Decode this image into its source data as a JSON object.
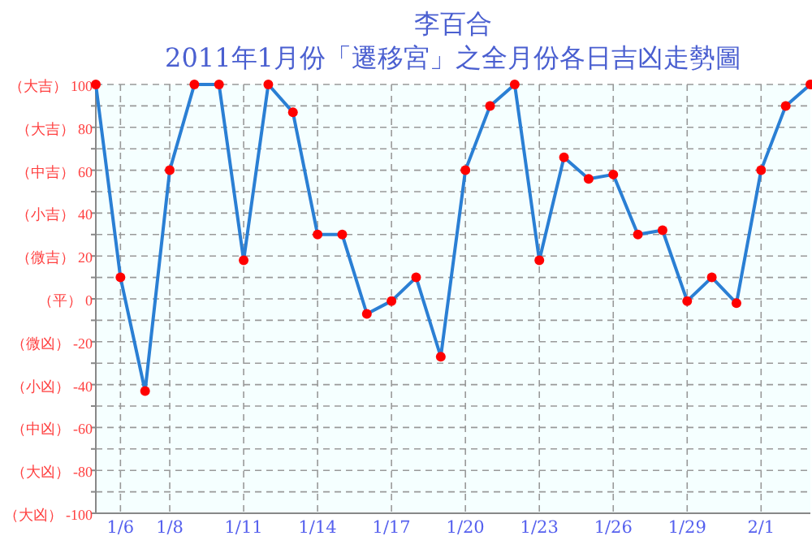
{
  "chart_data": {
    "type": "line",
    "title": "李百合",
    "subtitle": "2011年1月份「遷移宮」之全月份各日吉凶走勢圖",
    "categories": [
      null,
      "1/6",
      null,
      "1/8",
      null,
      null,
      "1/11",
      null,
      null,
      "1/14",
      null,
      null,
      "1/17",
      null,
      null,
      "1/20",
      null,
      null,
      "1/23",
      null,
      null,
      "1/26",
      null,
      null,
      "1/29",
      null,
      null,
      "2/1",
      null,
      null
    ],
    "series": [
      {
        "color": "#2a7fd4",
        "values": [
          100,
          10,
          -43,
          60,
          100,
          100,
          18,
          100,
          87,
          30,
          30,
          -7,
          -1,
          10,
          -27,
          60,
          90,
          100,
          18,
          66,
          56,
          58,
          30,
          32,
          -1,
          10,
          -2,
          60,
          90,
          100
        ]
      }
    ],
    "ylim": [
      -100,
      100
    ],
    "yticks": [
      {
        "value": 100,
        "label": "（大吉） 100"
      },
      {
        "value": 90,
        "label": null
      },
      {
        "value": 80,
        "label": "（大吉） 80"
      },
      {
        "value": 70,
        "label": null
      },
      {
        "value": 60,
        "label": "（中吉） 60"
      },
      {
        "value": 50,
        "label": null
      },
      {
        "value": 40,
        "label": "（小吉） 40"
      },
      {
        "value": 30,
        "label": null
      },
      {
        "value": 20,
        "label": "（微吉） 20"
      },
      {
        "value": 10,
        "label": null
      },
      {
        "value": 0,
        "label": "（平） 0"
      },
      {
        "value": -10,
        "label": null
      },
      {
        "value": -20,
        "label": "（微凶） -20"
      },
      {
        "value": -30,
        "label": null
      },
      {
        "value": -40,
        "label": "（小凶） -40"
      },
      {
        "value": -50,
        "label": null
      },
      {
        "value": -60,
        "label": "（中凶） -60"
      },
      {
        "value": -70,
        "label": null
      },
      {
        "value": -80,
        "label": "（大凶） -80"
      },
      {
        "value": -90,
        "label": null
      },
      {
        "value": -100,
        "label": "（大凶） -100"
      }
    ],
    "grid": true,
    "marker": "circle",
    "line_style": "solid"
  }
}
